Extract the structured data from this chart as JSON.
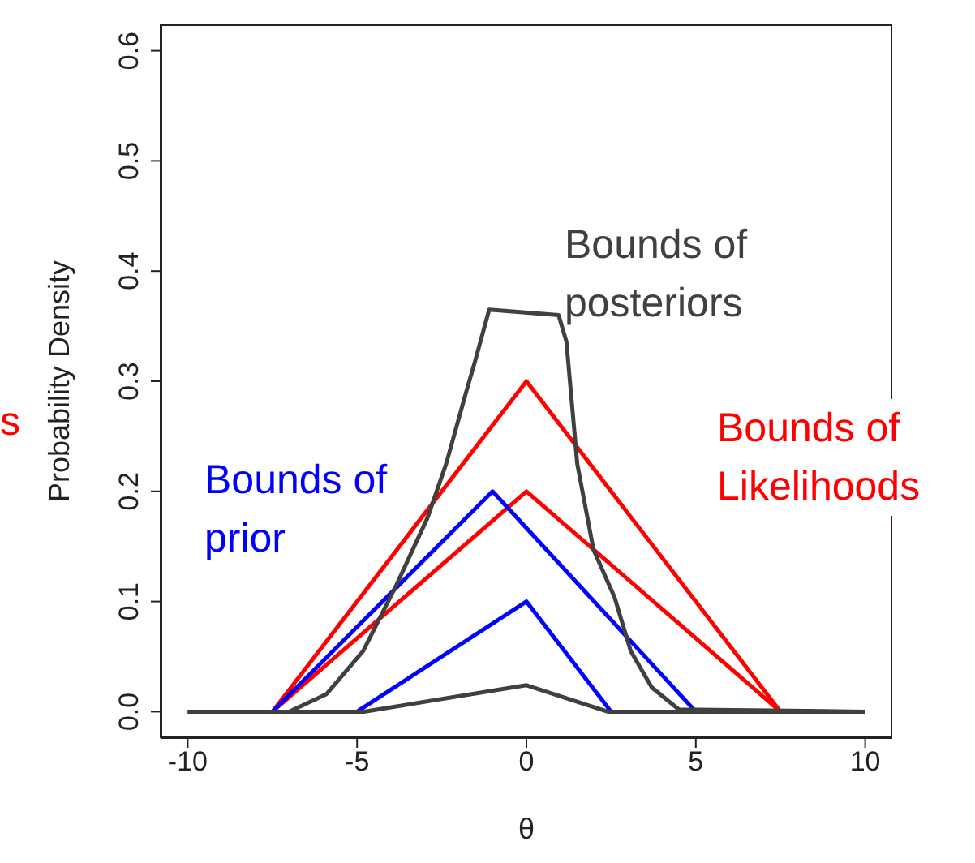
{
  "chart_data": {
    "type": "line",
    "xlabel": "θ",
    "ylabel": "Probability Density",
    "xlim": [
      -10.8,
      10.8
    ],
    "xticks": [
      -10,
      -5,
      0,
      5,
      10
    ],
    "ylim": [
      -0.024,
      0.624
    ],
    "yticks": [
      {
        "value": 0,
        "label": "0.0"
      },
      {
        "value": 0.1,
        "label": "0.1"
      },
      {
        "value": 0.2,
        "label": "0.2"
      },
      {
        "value": 0.3,
        "label": "0.3"
      },
      {
        "value": 0.4,
        "label": "0.4"
      },
      {
        "value": 0.5,
        "label": "0.5"
      },
      {
        "value": 0.6,
        "label": "0.6"
      }
    ],
    "marker": "none",
    "line_style": "solid",
    "annotations": [
      "s"
    ],
    "series": [
      {
        "name": "Bounds of Likelihoods",
        "color": "#ff0000",
        "x": [
          -7.5,
          0,
          7.5
        ],
        "values": [
          0,
          0.3,
          0
        ]
      },
      {
        "color": "#ff0000",
        "x": [
          -7.5,
          0,
          7.5
        ],
        "values": [
          0,
          0.2,
          0
        ]
      },
      {
        "name": "Bounds of prior",
        "color": "#0000ff",
        "x": [
          -7.5,
          -1,
          5
        ],
        "values": [
          0,
          0.2,
          0
        ]
      },
      {
        "color": "#0000ff",
        "x": [
          -5,
          0,
          2.5
        ],
        "values": [
          0,
          0.1,
          0
        ]
      },
      {
        "name": "Bounds of posteriors",
        "color": "#404040",
        "x": [
          -10,
          -7,
          -6.87,
          -5.9,
          -4.82,
          -3.87,
          -2.92,
          -2.37,
          -1.8,
          -1.5,
          -1.1,
          0.95,
          1.18,
          1.5,
          1.98,
          2.6,
          3.08,
          3.7,
          4.5,
          10
        ],
        "values": [
          0,
          0,
          0.002,
          0.016,
          0.055,
          0.113,
          0.176,
          0.225,
          0.288,
          0.32,
          0.365,
          0.36,
          0.336,
          0.225,
          0.147,
          0.104,
          0.055,
          0.022,
          0.002,
          0
        ]
      },
      {
        "color": "#404040",
        "x": [
          -10,
          -4.8,
          0,
          2.4,
          10
        ],
        "values": [
          0,
          0,
          0.024,
          0,
          0
        ]
      }
    ]
  }
}
